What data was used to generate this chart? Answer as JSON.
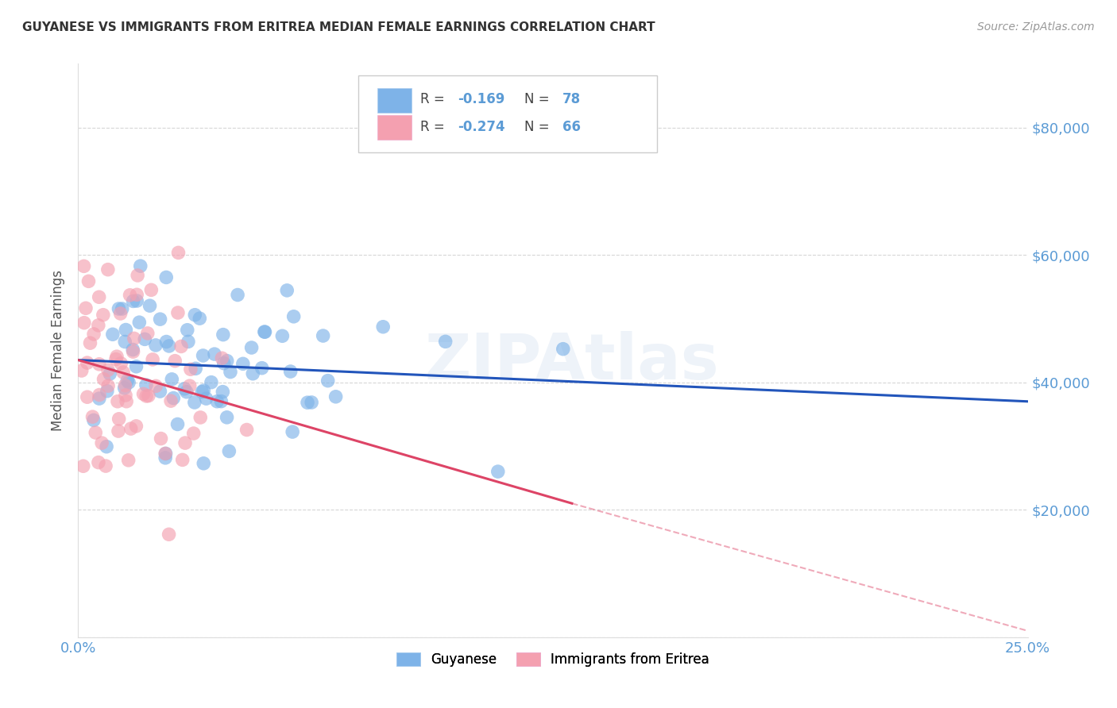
{
  "title": "GUYANESE VS IMMIGRANTS FROM ERITREA MEDIAN FEMALE EARNINGS CORRELATION CHART",
  "source": "Source: ZipAtlas.com",
  "ylabel": "Median Female Earnings",
  "yticks": [
    0,
    20000,
    40000,
    60000,
    80000
  ],
  "ytick_labels": [
    "",
    "$20,000",
    "$40,000",
    "$60,000",
    "$80,000"
  ],
  "xlim": [
    0.0,
    0.25
  ],
  "ylim": [
    0,
    90000
  ],
  "legend_blue_label": "Guyanese",
  "legend_pink_label": "Immigrants from Eritrea",
  "r_blue": -0.169,
  "n_blue": 78,
  "r_pink": -0.274,
  "n_pink": 66,
  "blue_color": "#7EB3E8",
  "pink_color": "#F4A0B0",
  "blue_line_color": "#2255BB",
  "pink_line_color": "#DD4466",
  "watermark": "ZIPAtlas",
  "title_fontsize": 11,
  "axis_label_color": "#5B9BD5",
  "grid_color": "#CCCCCC",
  "seed": 42,
  "blue_line_x0": 0.0,
  "blue_line_y0": 43500,
  "blue_line_x1": 0.25,
  "blue_line_y1": 37000,
  "pink_line_x0": 0.0,
  "pink_line_y0": 43500,
  "pink_line_solid_x1": 0.13,
  "pink_line_solid_y1": 21000,
  "pink_line_dash_x1": 0.25,
  "pink_line_dash_y1": 1000
}
